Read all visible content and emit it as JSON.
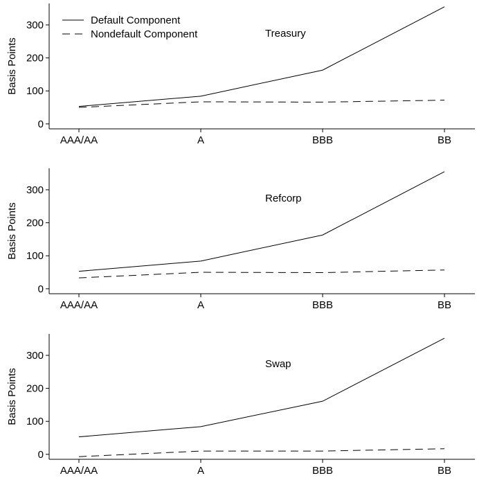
{
  "chart_data": [
    {
      "type": "line",
      "title": "Treasury",
      "xlabel": "",
      "ylabel": "Basis Points",
      "categories": [
        "AAA/AA",
        "A",
        "BBB",
        "BB"
      ],
      "yticks": [
        0,
        100,
        200,
        300
      ],
      "ylim": [
        -15,
        365
      ],
      "grid": false,
      "legend": "top-left",
      "series": [
        {
          "name": "Default Component",
          "style": "solid",
          "values": [
            53,
            84,
            163,
            355
          ]
        },
        {
          "name": "Nondefault Component",
          "style": "dashed",
          "values": [
            50,
            67,
            66,
            72
          ]
        }
      ]
    },
    {
      "type": "line",
      "title": "Refcorp",
      "xlabel": "",
      "ylabel": "Basis Points",
      "categories": [
        "AAA/AA",
        "A",
        "BBB",
        "BB"
      ],
      "yticks": [
        0,
        100,
        200,
        300
      ],
      "ylim": [
        -15,
        365
      ],
      "grid": false,
      "series": [
        {
          "style": "solid",
          "values": [
            53,
            84,
            163,
            355
          ]
        },
        {
          "style": "dashed",
          "values": [
            33,
            50,
            49,
            57
          ]
        }
      ]
    },
    {
      "type": "line",
      "title": "Swap",
      "xlabel": "",
      "ylabel": "Basis Points",
      "categories": [
        "AAA/AA",
        "A",
        "BBB",
        "BB"
      ],
      "yticks": [
        0,
        100,
        200,
        300
      ],
      "ylim": [
        -15,
        365
      ],
      "grid": false,
      "series": [
        {
          "style": "solid",
          "values": [
            53,
            84,
            161,
            352
          ]
        },
        {
          "style": "dashed",
          "values": [
            -7,
            10,
            10,
            17
          ]
        }
      ]
    }
  ]
}
